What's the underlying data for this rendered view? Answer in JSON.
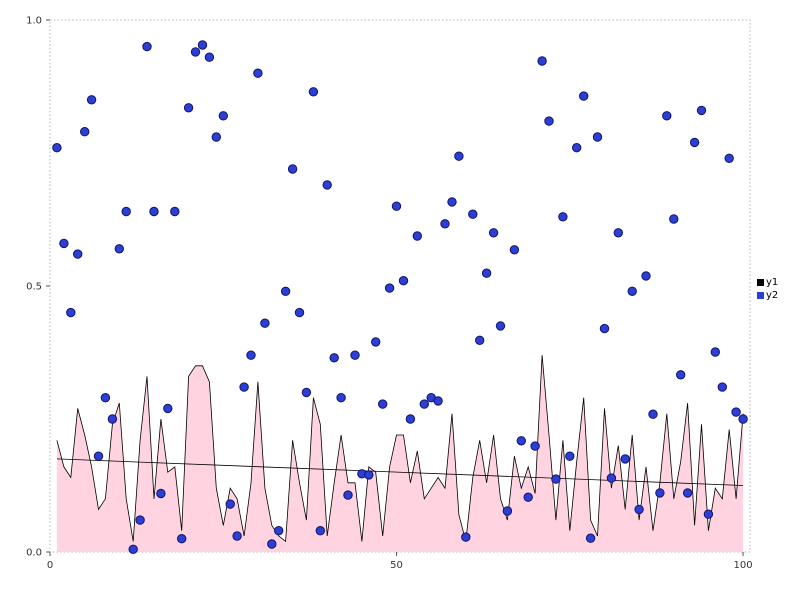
{
  "figure": {
    "background": "#ffffff",
    "frame_color": "#b3b3b3",
    "tick_color": "#555555"
  },
  "legend": {
    "items": [
      {
        "label": "y1",
        "color": "#000000"
      },
      {
        "label": "y2",
        "color": "#2b3fd6"
      }
    ]
  },
  "chart_data": {
    "type": "area+scatter",
    "title": "",
    "xlabel": "",
    "ylabel": "",
    "xlim": [
      0,
      101
    ],
    "ylim": [
      0,
      1
    ],
    "x_ticks": [
      0,
      50,
      100
    ],
    "x_tick_labels": [
      "0",
      "50",
      "100"
    ],
    "y_ticks": [
      0,
      0.5,
      1
    ],
    "y_tick_labels": [
      "0.0",
      "0.5",
      "1.0"
    ],
    "grid": false,
    "legend_position": "right-outside",
    "x_start": 1,
    "x_step": 1,
    "n_points": 100,
    "series": [
      {
        "name": "y1",
        "type": "area",
        "fill": "#ffcfdd",
        "edge": "#000000",
        "legend_color": "#000000",
        "values": [
          0.21,
          0.16,
          0.14,
          0.27,
          0.22,
          0.16,
          0.08,
          0.1,
          0.24,
          0.28,
          0.1,
          0.02,
          0.21,
          0.33,
          0.1,
          0.25,
          0.15,
          0.16,
          0.04,
          0.33,
          0.35,
          0.35,
          0.32,
          0.12,
          0.05,
          0.12,
          0.1,
          0.03,
          0.13,
          0.32,
          0.12,
          0.05,
          0.03,
          0.02,
          0.21,
          0.13,
          0.06,
          0.29,
          0.24,
          0.03,
          0.13,
          0.22,
          0.13,
          0.13,
          0.02,
          0.16,
          0.15,
          0.03,
          0.16,
          0.22,
          0.22,
          0.13,
          0.19,
          0.1,
          0.12,
          0.14,
          0.12,
          0.26,
          0.07,
          0.02,
          0.14,
          0.21,
          0.13,
          0.22,
          0.1,
          0.06,
          0.18,
          0.12,
          0.16,
          0.11,
          0.37,
          0.22,
          0.06,
          0.21,
          0.04,
          0.17,
          0.29,
          0.06,
          0.03,
          0.27,
          0.12,
          0.2,
          0.08,
          0.22,
          0.06,
          0.16,
          0.04,
          0.13,
          0.26,
          0.1,
          0.17,
          0.28,
          0.05,
          0.24,
          0.04,
          0.12,
          0.1,
          0.23,
          0.1,
          0.26
        ]
      },
      {
        "name": "y2",
        "type": "scatter",
        "fill": "#2b3fd6",
        "edge": "#131366",
        "legend_color": "#2b3fd6",
        "marker_radius": 4.2,
        "values": [
          0.76,
          0.58,
          0.45,
          0.56,
          0.79,
          0.85,
          0.18,
          0.29,
          0.25,
          0.57,
          0.64,
          0.005,
          0.06,
          0.95,
          0.64,
          0.11,
          0.27,
          0.64,
          0.025,
          0.835,
          0.94,
          0.953,
          0.93,
          0.78,
          0.82,
          0.09,
          0.03,
          0.31,
          0.37,
          0.9,
          0.43,
          0.015,
          0.04,
          0.49,
          0.72,
          0.45,
          0.3,
          0.865,
          0.04,
          0.69,
          0.365,
          0.29,
          0.107,
          0.37,
          0.147,
          0.145,
          0.395,
          0.278,
          0.496,
          0.65,
          0.51,
          0.25,
          0.594,
          0.278,
          0.29,
          0.284,
          0.617,
          0.658,
          0.744,
          0.028,
          0.635,
          0.398,
          0.524,
          0.6,
          0.425,
          0.077,
          0.568,
          0.209,
          0.103,
          0.199,
          0.923,
          0.81,
          0.137,
          0.63,
          0.18,
          0.76,
          0.857,
          0.026,
          0.78,
          0.42,
          0.139,
          0.6,
          0.175,
          0.49,
          0.08,
          0.519,
          0.259,
          0.111,
          0.82,
          0.626,
          0.333,
          0.111,
          0.77,
          0.83,
          0.071,
          0.376,
          0.31,
          0.74,
          0.263,
          0.25
        ]
      },
      {
        "name": "y1-trend",
        "type": "line",
        "stroke": "#000000",
        "x": [
          1,
          100
        ],
        "y": [
          0.175,
          0.125
        ]
      }
    ]
  }
}
